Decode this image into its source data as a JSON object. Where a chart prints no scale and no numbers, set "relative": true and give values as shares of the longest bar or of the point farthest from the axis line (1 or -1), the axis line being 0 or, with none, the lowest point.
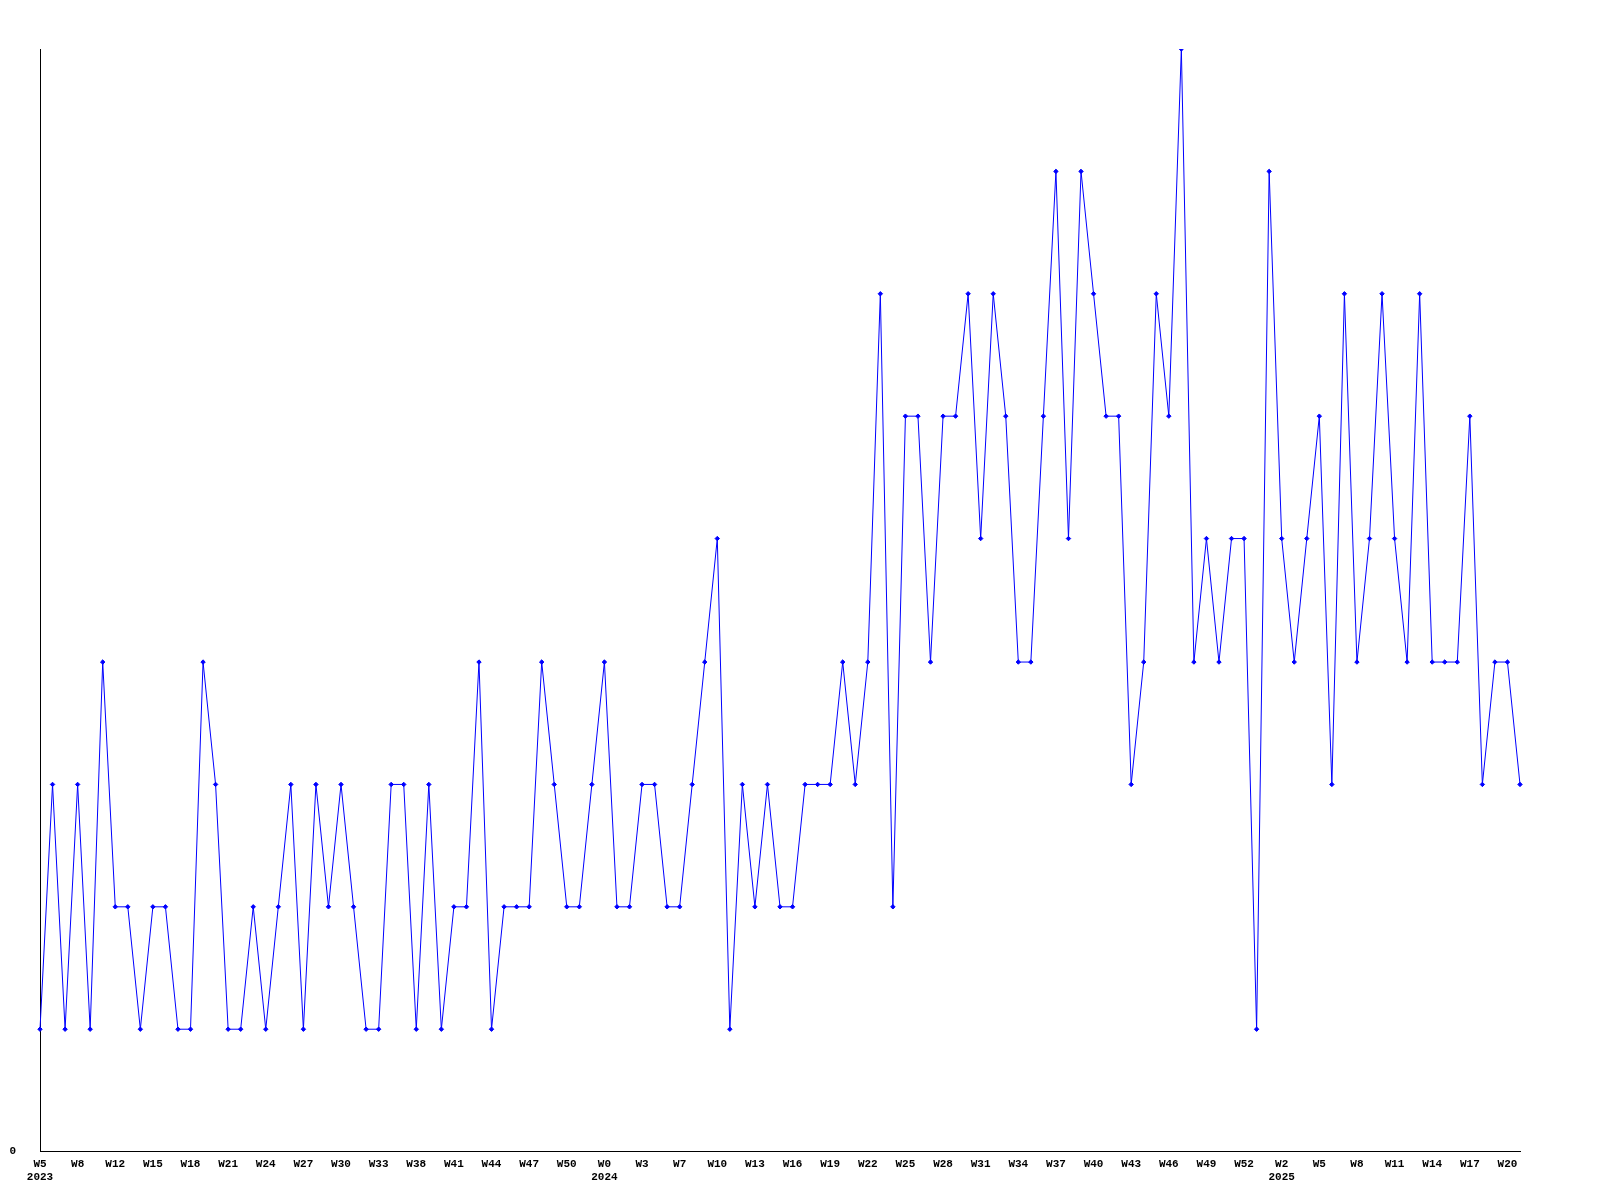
{
  "chart_data": {
    "type": "line",
    "relative": true,
    "color": "#0000ff",
    "marker": "diamond",
    "grid": false,
    "legend": false,
    "annotations": [
      "0"
    ],
    "categories": [
      "W5\n2023",
      null,
      null,
      "W8",
      null,
      null,
      "W12",
      null,
      null,
      "W15",
      null,
      null,
      "W18",
      null,
      null,
      "W21",
      null,
      null,
      "W24",
      null,
      null,
      "W27",
      null,
      null,
      "W30",
      null,
      null,
      "W33",
      null,
      null,
      "W38",
      null,
      null,
      "W41",
      null,
      null,
      "W44",
      null,
      null,
      "W47",
      null,
      null,
      "W50",
      null,
      null,
      "W0\n2024",
      null,
      null,
      "W3",
      null,
      null,
      "W7",
      null,
      null,
      "W10",
      null,
      null,
      "W13",
      null,
      null,
      "W16",
      null,
      null,
      "W19",
      null,
      null,
      "W22",
      null,
      null,
      "W25",
      null,
      null,
      "W28",
      null,
      null,
      "W31",
      null,
      null,
      "W34",
      null,
      null,
      "W37",
      null,
      null,
      "W40",
      null,
      null,
      "W43",
      null,
      null,
      "W46",
      null,
      null,
      "W49",
      null,
      null,
      "W52",
      null,
      null,
      "W2\n2025",
      null,
      null,
      "W5",
      null,
      null,
      "W8",
      null,
      null,
      "W11",
      null,
      null,
      "W14",
      null,
      null,
      "W17",
      null,
      null,
      "W20",
      null
    ],
    "values": [
      0.111,
      0.333,
      0.111,
      0.333,
      0.111,
      0.444,
      0.222,
      0.222,
      0.111,
      0.222,
      0.222,
      0.111,
      0.111,
      0.444,
      0.333,
      0.111,
      0.111,
      0.222,
      0.111,
      0.222,
      0.333,
      0.111,
      0.333,
      0.222,
      0.333,
      0.222,
      0.111,
      0.111,
      0.333,
      0.333,
      0.111,
      0.333,
      0.111,
      0.222,
      0.222,
      0.444,
      0.111,
      0.222,
      0.222,
      0.222,
      0.444,
      0.333,
      0.222,
      0.222,
      0.333,
      0.444,
      0.222,
      0.222,
      0.333,
      0.333,
      0.222,
      0.222,
      0.333,
      0.444,
      0.556,
      0.111,
      0.333,
      0.222,
      0.333,
      0.222,
      0.222,
      0.333,
      0.333,
      0.333,
      0.444,
      0.333,
      0.444,
      0.778,
      0.222,
      0.667,
      0.667,
      0.444,
      0.667,
      0.667,
      0.778,
      0.556,
      0.778,
      0.667,
      0.444,
      0.444,
      0.667,
      0.889,
      0.556,
      0.889,
      0.778,
      0.667,
      0.667,
      0.333,
      0.444,
      0.778,
      0.667,
      1,
      0.444,
      0.556,
      0.444,
      0.556,
      0.556,
      0.111,
      0.889,
      0.556,
      0.444,
      0.556,
      0.667,
      0.333,
      0.778,
      0.444,
      0.556,
      0.778,
      0.556,
      0.444,
      0.778,
      0.444,
      0.444,
      0.444,
      0.667,
      0.333,
      0.444,
      0.444,
      0.333
    ]
  }
}
